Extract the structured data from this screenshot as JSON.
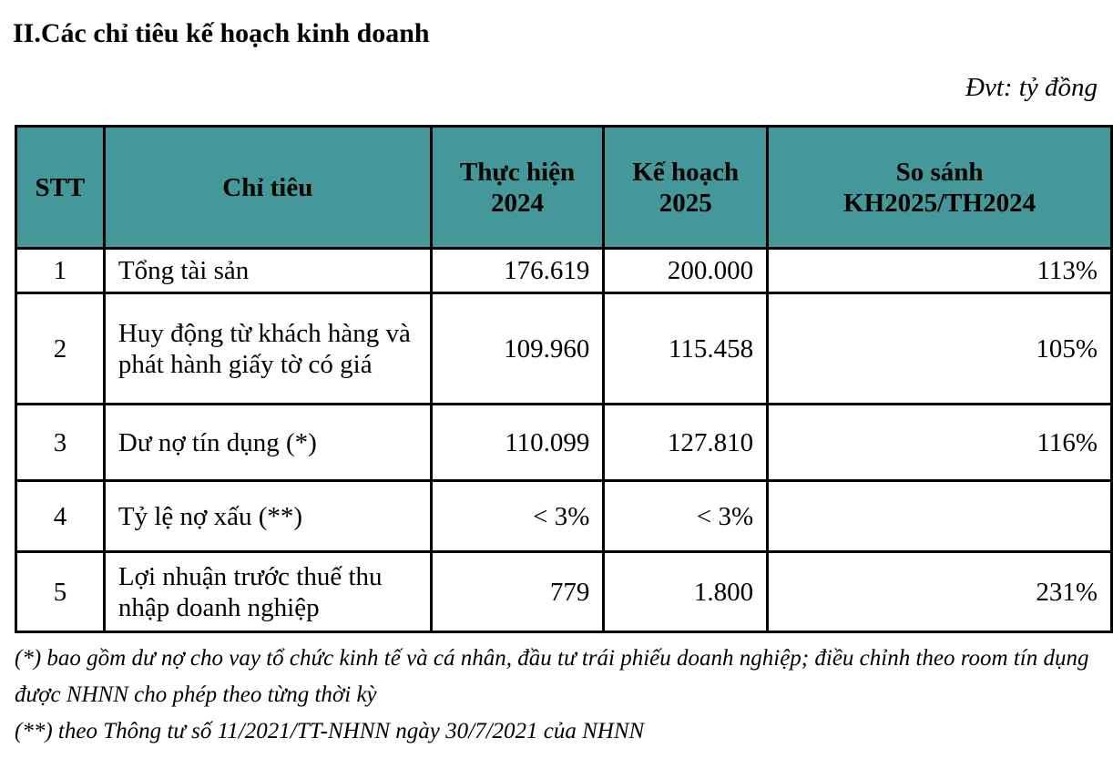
{
  "title": "II.Các chỉ tiêu kế hoạch kinh doanh",
  "unit": "Đvt: tỷ đồng",
  "header_color": "#45989a",
  "table": {
    "headers": [
      "STT",
      "Chỉ tiêu",
      "Thực hiện 2024",
      "Kế hoạch 2025",
      "So sánh KH2025/TH2024"
    ],
    "rows": [
      {
        "stt": "1",
        "name": "Tổng tài sản",
        "th2024": "176.619",
        "kh2025": "200.000",
        "ratio": "113%"
      },
      {
        "stt": "2",
        "name": "Huy động từ khách hàng và phát hành giấy tờ có giá",
        "th2024": "109.960",
        "kh2025": "115.458",
        "ratio": "105%"
      },
      {
        "stt": "3",
        "name": "Dư nợ tín dụng (*)",
        "th2024": "110.099",
        "kh2025": "127.810",
        "ratio": "116%"
      },
      {
        "stt": "4",
        "name": "Tỷ lệ nợ xấu (**)",
        "th2024": "< 3%",
        "kh2025": "< 3%",
        "ratio": ""
      },
      {
        "stt": "5",
        "name": "Lợi nhuận trước thuế thu nhập doanh nghiệp",
        "th2024": "779",
        "kh2025": "1.800",
        "ratio": "231%"
      }
    ]
  },
  "notes": [
    "(*) bao gồm dư nợ cho vay tổ chức kinh tế và cá nhân, đầu tư trái phiếu doanh nghiệp; điều chỉnh theo room tín dụng được NHNN cho phép theo từng thời kỳ",
    "(**) theo Thông tư số 11/2021/TT-NHNN ngày 30/7/2021 của NHNN"
  ]
}
